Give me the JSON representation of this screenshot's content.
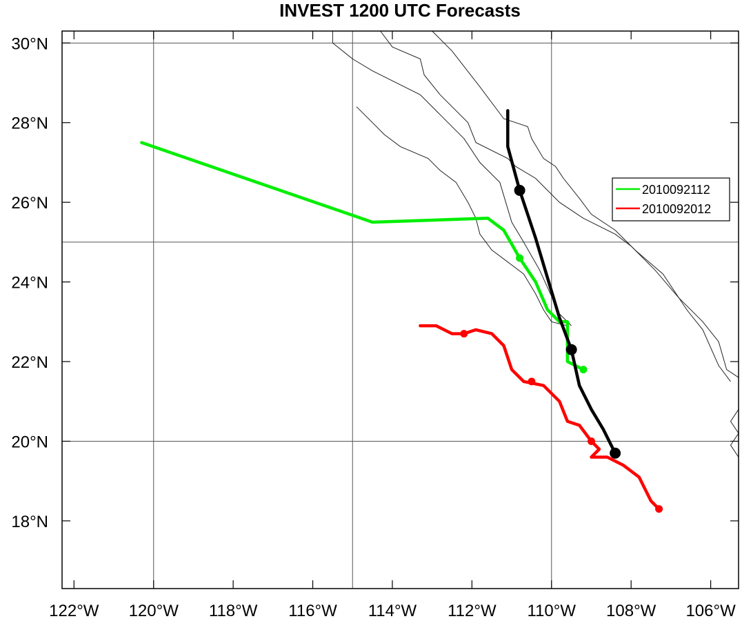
{
  "chart_data": {
    "type": "map",
    "title": "INVEST 1200 UTC Forecasts",
    "xlim": [
      -122.3,
      -105.3
    ],
    "ylim": [
      16.3,
      30.3
    ],
    "x_ticks": [
      {
        "value": -122,
        "label": "122°W"
      },
      {
        "value": -120,
        "label": "120°W"
      },
      {
        "value": -118,
        "label": "118°W"
      },
      {
        "value": -116,
        "label": "116°W"
      },
      {
        "value": -114,
        "label": "114°W"
      },
      {
        "value": -112,
        "label": "112°W"
      },
      {
        "value": -110,
        "label": "110°W"
      },
      {
        "value": -108,
        "label": "108°W"
      },
      {
        "value": -106,
        "label": "106°W"
      }
    ],
    "y_ticks": [
      {
        "value": 18,
        "label": "18°N"
      },
      {
        "value": 20,
        "label": "20°N"
      },
      {
        "value": 22,
        "label": "22°N"
      },
      {
        "value": 24,
        "label": "24°N"
      },
      {
        "value": 26,
        "label": "26°N"
      },
      {
        "value": 28,
        "label": "28°N"
      },
      {
        "value": 30,
        "label": "30°N"
      }
    ],
    "gridlines": {
      "lon": [
        -120,
        -115,
        -110
      ],
      "lat": [
        20,
        25,
        30
      ]
    },
    "legend": {
      "position": "right",
      "entries": [
        {
          "label": "2010092112",
          "color": "#00ee00"
        },
        {
          "label": "2010092012",
          "color": "#ff0000"
        }
      ]
    },
    "series": [
      {
        "name": "2010092112",
        "color": "#00ee00",
        "points": [
          [
            -120.3,
            27.5
          ],
          [
            -114.5,
            25.5
          ],
          [
            -111.6,
            25.6
          ],
          [
            -111.2,
            25.3
          ],
          [
            -110.8,
            24.6
          ],
          [
            -110.4,
            24.0
          ],
          [
            -110.1,
            23.3
          ],
          [
            -109.8,
            23.0
          ],
          [
            -109.6,
            23.0
          ],
          [
            -109.6,
            22.0
          ],
          [
            -109.2,
            21.8
          ]
        ],
        "markers": [
          [
            -110.8,
            24.6
          ],
          [
            -109.2,
            21.8
          ]
        ]
      },
      {
        "name": "2010092012",
        "color": "#ff0000",
        "points": [
          [
            -113.3,
            22.9
          ],
          [
            -112.9,
            22.9
          ],
          [
            -112.5,
            22.7
          ],
          [
            -112.2,
            22.7
          ],
          [
            -111.9,
            22.8
          ],
          [
            -111.5,
            22.7
          ],
          [
            -111.2,
            22.4
          ],
          [
            -111.0,
            21.8
          ],
          [
            -110.7,
            21.5
          ],
          [
            -110.2,
            21.4
          ],
          [
            -109.8,
            21.0
          ],
          [
            -109.6,
            20.5
          ],
          [
            -109.3,
            20.4
          ],
          [
            -109.0,
            20.0
          ],
          [
            -108.8,
            19.8
          ],
          [
            -109.0,
            19.6
          ],
          [
            -108.6,
            19.6
          ],
          [
            -108.2,
            19.4
          ],
          [
            -107.8,
            19.1
          ],
          [
            -107.5,
            18.5
          ],
          [
            -107.3,
            18.3
          ]
        ],
        "markers": [
          [
            -112.2,
            22.7
          ],
          [
            -110.5,
            21.5
          ],
          [
            -109.0,
            20.0
          ],
          [
            -107.3,
            18.3
          ]
        ]
      },
      {
        "color": "#000000",
        "points": [
          [
            -111.1,
            28.3
          ],
          [
            -111.1,
            27.4
          ],
          [
            -110.8,
            26.3
          ],
          [
            -110.4,
            25.1
          ],
          [
            -110.1,
            24.1
          ],
          [
            -109.8,
            23.1
          ],
          [
            -109.5,
            22.3
          ],
          [
            -109.3,
            21.4
          ],
          [
            -109.0,
            20.8
          ],
          [
            -108.7,
            20.3
          ],
          [
            -108.4,
            19.7
          ]
        ],
        "markers": [
          [
            -110.8,
            26.3
          ],
          [
            -109.5,
            22.3
          ],
          [
            -108.4,
            19.7
          ]
        ]
      }
    ],
    "coastlines": [
      [
        [
          -115.5,
          30.3
        ],
        [
          -115.5,
          30.0
        ],
        [
          -115.0,
          29.6
        ],
        [
          -114.5,
          29.3
        ],
        [
          -113.3,
          28.7
        ],
        [
          -112.8,
          28.2
        ],
        [
          -112.2,
          27.6
        ],
        [
          -111.8,
          27.0
        ],
        [
          -111.3,
          26.5
        ],
        [
          -111.0,
          25.5
        ],
        [
          -110.7,
          25.0
        ],
        [
          -110.3,
          24.3
        ],
        [
          -109.8,
          23.2
        ],
        [
          -109.5,
          22.9
        ]
      ],
      [
        [
          -114.3,
          30.3
        ],
        [
          -114.0,
          29.9
        ],
        [
          -113.3,
          29.6
        ],
        [
          -113.2,
          29.2
        ],
        [
          -112.8,
          28.7
        ],
        [
          -112.1,
          28.0
        ],
        [
          -111.9,
          27.5
        ],
        [
          -111.1,
          27.1
        ],
        [
          -110.9,
          26.9
        ],
        [
          -110.4,
          26.6
        ],
        [
          -110.1,
          26.3
        ],
        [
          -109.8,
          26.0
        ],
        [
          -109.2,
          25.6
        ],
        [
          -108.4,
          25.2
        ],
        [
          -108.0,
          24.9
        ],
        [
          -107.4,
          24.3
        ],
        [
          -106.8,
          23.6
        ],
        [
          -106.2,
          23.0
        ],
        [
          -105.8,
          22.5
        ],
        [
          -105.6,
          21.8
        ],
        [
          -105.3,
          21.6
        ]
      ],
      [
        [
          -114.9,
          28.4
        ],
        [
          -114.5,
          28.0
        ],
        [
          -114.2,
          27.7
        ],
        [
          -113.8,
          27.4
        ],
        [
          -113.1,
          27.1
        ],
        [
          -112.8,
          26.8
        ],
        [
          -112.4,
          26.5
        ],
        [
          -112.1,
          26.0
        ],
        [
          -111.9,
          25.6
        ],
        [
          -111.8,
          25.2
        ],
        [
          -111.5,
          24.8
        ],
        [
          -111.1,
          24.5
        ],
        [
          -110.7,
          24.2
        ],
        [
          -110.4,
          23.7
        ],
        [
          -110.2,
          23.3
        ],
        [
          -110.0,
          23.0
        ],
        [
          -109.6,
          22.9
        ]
      ],
      [
        [
          -113.0,
          30.3
        ],
        [
          -112.5,
          29.8
        ],
        [
          -111.8,
          28.9
        ],
        [
          -111.2,
          28.1
        ],
        [
          -110.6,
          27.9
        ],
        [
          -110.5,
          27.6
        ],
        [
          -110.2,
          27.1
        ],
        [
          -109.9,
          26.9
        ],
        [
          -109.7,
          26.6
        ],
        [
          -109.3,
          26.1
        ],
        [
          -109.0,
          25.7
        ],
        [
          -108.4,
          25.3
        ],
        [
          -107.9,
          24.8
        ],
        [
          -107.2,
          24.2
        ],
        [
          -106.6,
          23.3
        ],
        [
          -106.2,
          22.8
        ],
        [
          -105.8,
          21.9
        ],
        [
          -105.5,
          21.5
        ]
      ],
      [
        [
          -105.3,
          20.8
        ],
        [
          -105.5,
          20.5
        ],
        [
          -105.3,
          20.2
        ],
        [
          -105.5,
          19.9
        ],
        [
          -105.3,
          19.6
        ]
      ]
    ]
  }
}
